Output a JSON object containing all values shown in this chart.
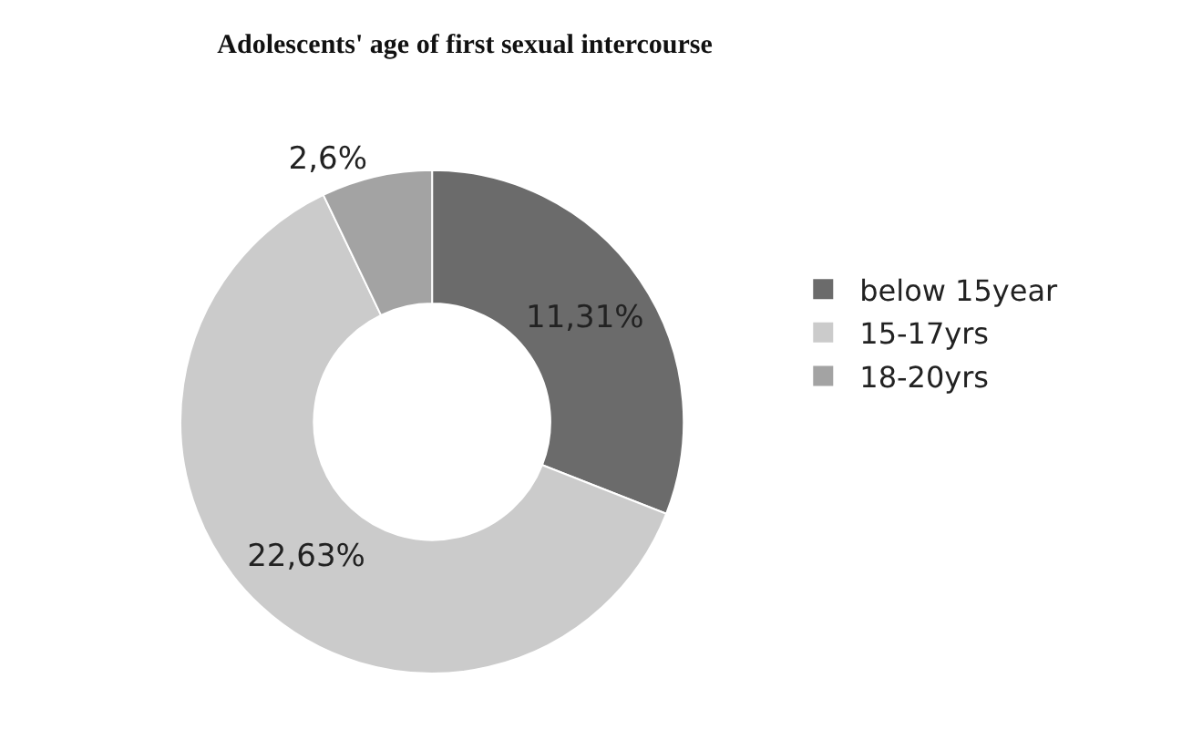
{
  "chart_data": {
    "type": "donut",
    "title": "Adolescents' age of first sexual intercourse",
    "categories": [
      "below 15year",
      "15-17yrs",
      "18-20yrs"
    ],
    "values": [
      11.31,
      22.63,
      2.6
    ],
    "value_labels": [
      "11,31%",
      "22,63%",
      "2,6%"
    ],
    "colors": [
      "#6b6b6b",
      "#cbcbcb",
      "#a3a3a3"
    ],
    "legend": "right"
  }
}
